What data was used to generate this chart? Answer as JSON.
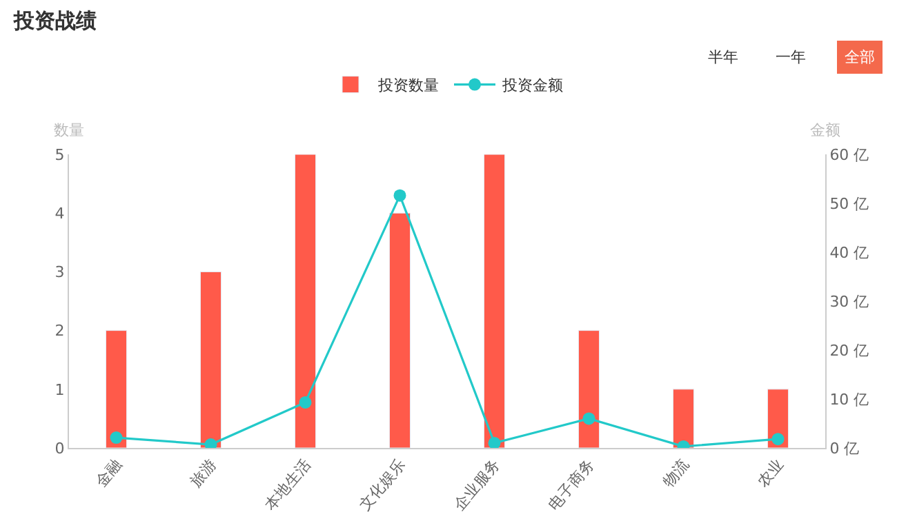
{
  "chart_data": {
    "type": "bar",
    "title": "投资战绩",
    "categories": [
      "金融",
      "旅游",
      "本地生活",
      "文化娱乐",
      "企业服务",
      "电子商务",
      "物流",
      "农业"
    ],
    "series": [
      {
        "name": "投资数量",
        "color": "#ff5a4a",
        "values": [
          2,
          3,
          5,
          4,
          5,
          2,
          1,
          1
        ]
      },
      {
        "name": "投资金额",
        "type": "line",
        "axis": "y2",
        "color": "#22c9c9",
        "values": [
          2.1,
          0.7,
          9.3,
          51.6,
          1.0,
          6.0,
          0.3,
          1.8
        ]
      }
    ],
    "ylabel": "数量",
    "y2label": "金额",
    "ylim": [
      0,
      5
    ],
    "yticks": [
      0,
      1,
      2,
      3,
      4,
      5
    ],
    "y2lim": [
      0,
      60
    ],
    "y2ticks": [
      {
        "value": 0,
        "label": "0 亿"
      },
      {
        "value": 10,
        "label": "10 亿"
      },
      {
        "value": 20,
        "label": "20 亿"
      },
      {
        "value": 30,
        "label": "30 亿"
      },
      {
        "value": 40,
        "label": "40 亿"
      },
      {
        "value": 50,
        "label": "50 亿"
      },
      {
        "value": 60,
        "label": "60 亿"
      }
    ],
    "annotations": [
      "半年",
      "一年",
      "全部"
    ],
    "legend": "top",
    "grid": false,
    "marker": "circle",
    "line_style": "solid"
  }
}
